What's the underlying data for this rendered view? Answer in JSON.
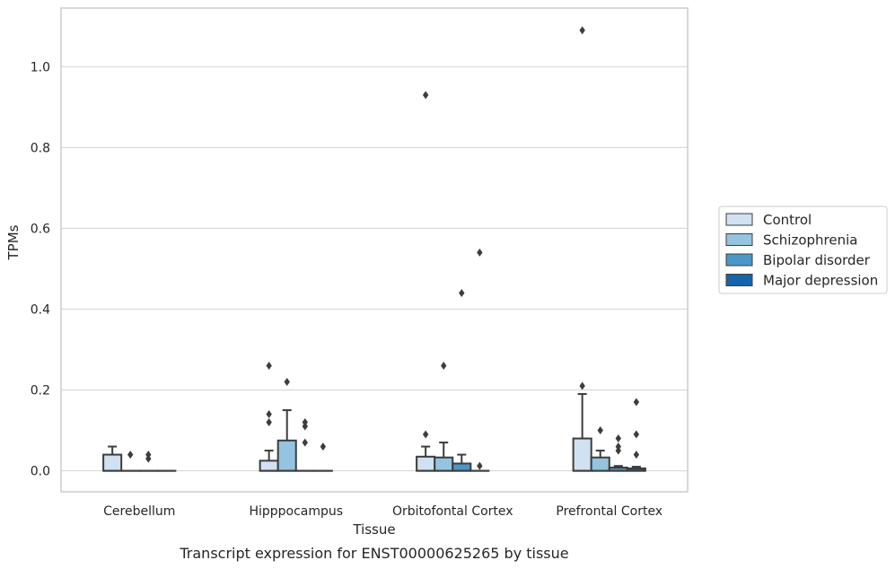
{
  "chart_data": {
    "type": "box",
    "title": "Transcript expression for ENST00000625265 by tissue",
    "xlabel": "Tissue",
    "ylabel": "TPMs",
    "ylim": [
      -0.052,
      1.145
    ],
    "yticks": [
      0.0,
      0.2,
      0.4,
      0.6,
      0.8,
      1.0
    ],
    "ytick_labels": [
      "0.0",
      "0.2",
      "0.4",
      "0.6",
      "0.8",
      "1.0"
    ],
    "grid": "horizontal",
    "legend_position": "right",
    "categories": [
      "Cerebellum",
      "Hipppocampus",
      "Orbitofontal Cortex",
      "Prefrontal Cortex"
    ],
    "series": [
      {
        "name": "Control",
        "color": "#d0e1f2",
        "boxes": [
          {
            "q1": 0.0,
            "median": 0.0,
            "q3": 0.04,
            "whisker_low": 0.0,
            "whisker_high": 0.06,
            "outliers": []
          },
          {
            "q1": 0.0,
            "median": 0.0,
            "q3": 0.025,
            "whisker_low": 0.0,
            "whisker_high": 0.05,
            "outliers": [
              0.12,
              0.14,
              0.26
            ]
          },
          {
            "q1": 0.0,
            "median": 0.0,
            "q3": 0.035,
            "whisker_low": 0.0,
            "whisker_high": 0.06,
            "outliers": [
              0.09,
              0.93
            ]
          },
          {
            "q1": 0.0,
            "median": 0.0,
            "q3": 0.08,
            "whisker_low": 0.0,
            "whisker_high": 0.19,
            "outliers": [
              0.21,
              1.09
            ]
          }
        ]
      },
      {
        "name": "Schizophrenia",
        "color": "#94c4df",
        "boxes": [
          {
            "q1": 0.0,
            "median": 0.0,
            "q3": 0.0,
            "whisker_low": 0.0,
            "whisker_high": 0.0,
            "outliers": [
              0.04
            ]
          },
          {
            "q1": 0.0,
            "median": 0.0,
            "q3": 0.075,
            "whisker_low": 0.0,
            "whisker_high": 0.15,
            "outliers": [
              0.22
            ]
          },
          {
            "q1": 0.0,
            "median": 0.0,
            "q3": 0.033,
            "whisker_low": 0.0,
            "whisker_high": 0.07,
            "outliers": [
              0.26
            ]
          },
          {
            "q1": 0.0,
            "median": 0.0,
            "q3": 0.033,
            "whisker_low": 0.0,
            "whisker_high": 0.05,
            "outliers": [
              0.1
            ]
          }
        ]
      },
      {
        "name": "Bipolar disorder",
        "color": "#4a98c9",
        "boxes": [
          {
            "q1": 0.0,
            "median": 0.0,
            "q3": 0.0,
            "whisker_low": 0.0,
            "whisker_high": 0.0,
            "outliers": [
              0.03,
              0.04
            ]
          },
          {
            "q1": 0.0,
            "median": 0.0,
            "q3": 0.0,
            "whisker_low": 0.0,
            "whisker_high": 0.0,
            "outliers": [
              0.07,
              0.11,
              0.12
            ]
          },
          {
            "q1": 0.0,
            "median": 0.0,
            "q3": 0.018,
            "whisker_low": 0.0,
            "whisker_high": 0.04,
            "outliers": [
              0.44
            ]
          },
          {
            "q1": 0.0,
            "median": 0.0,
            "q3": 0.008,
            "whisker_low": 0.0,
            "whisker_high": 0.012,
            "outliers": [
              0.05,
              0.06,
              0.08
            ]
          }
        ]
      },
      {
        "name": "Major depression",
        "color": "#1764ab",
        "boxes": [
          {
            "q1": 0.0,
            "median": 0.0,
            "q3": 0.0,
            "whisker_low": 0.0,
            "whisker_high": 0.0,
            "outliers": []
          },
          {
            "q1": 0.0,
            "median": 0.0,
            "q3": 0.0,
            "whisker_low": 0.0,
            "whisker_high": 0.0,
            "outliers": [
              0.06
            ]
          },
          {
            "q1": 0.0,
            "median": 0.0,
            "q3": 0.0,
            "whisker_low": 0.0,
            "whisker_high": 0.0,
            "outliers": [
              0.012,
              0.54
            ]
          },
          {
            "q1": 0.0,
            "median": 0.0,
            "q3": 0.006,
            "whisker_low": 0.0,
            "whisker_high": 0.01,
            "outliers": [
              0.04,
              0.09,
              0.17
            ]
          }
        ]
      }
    ]
  }
}
